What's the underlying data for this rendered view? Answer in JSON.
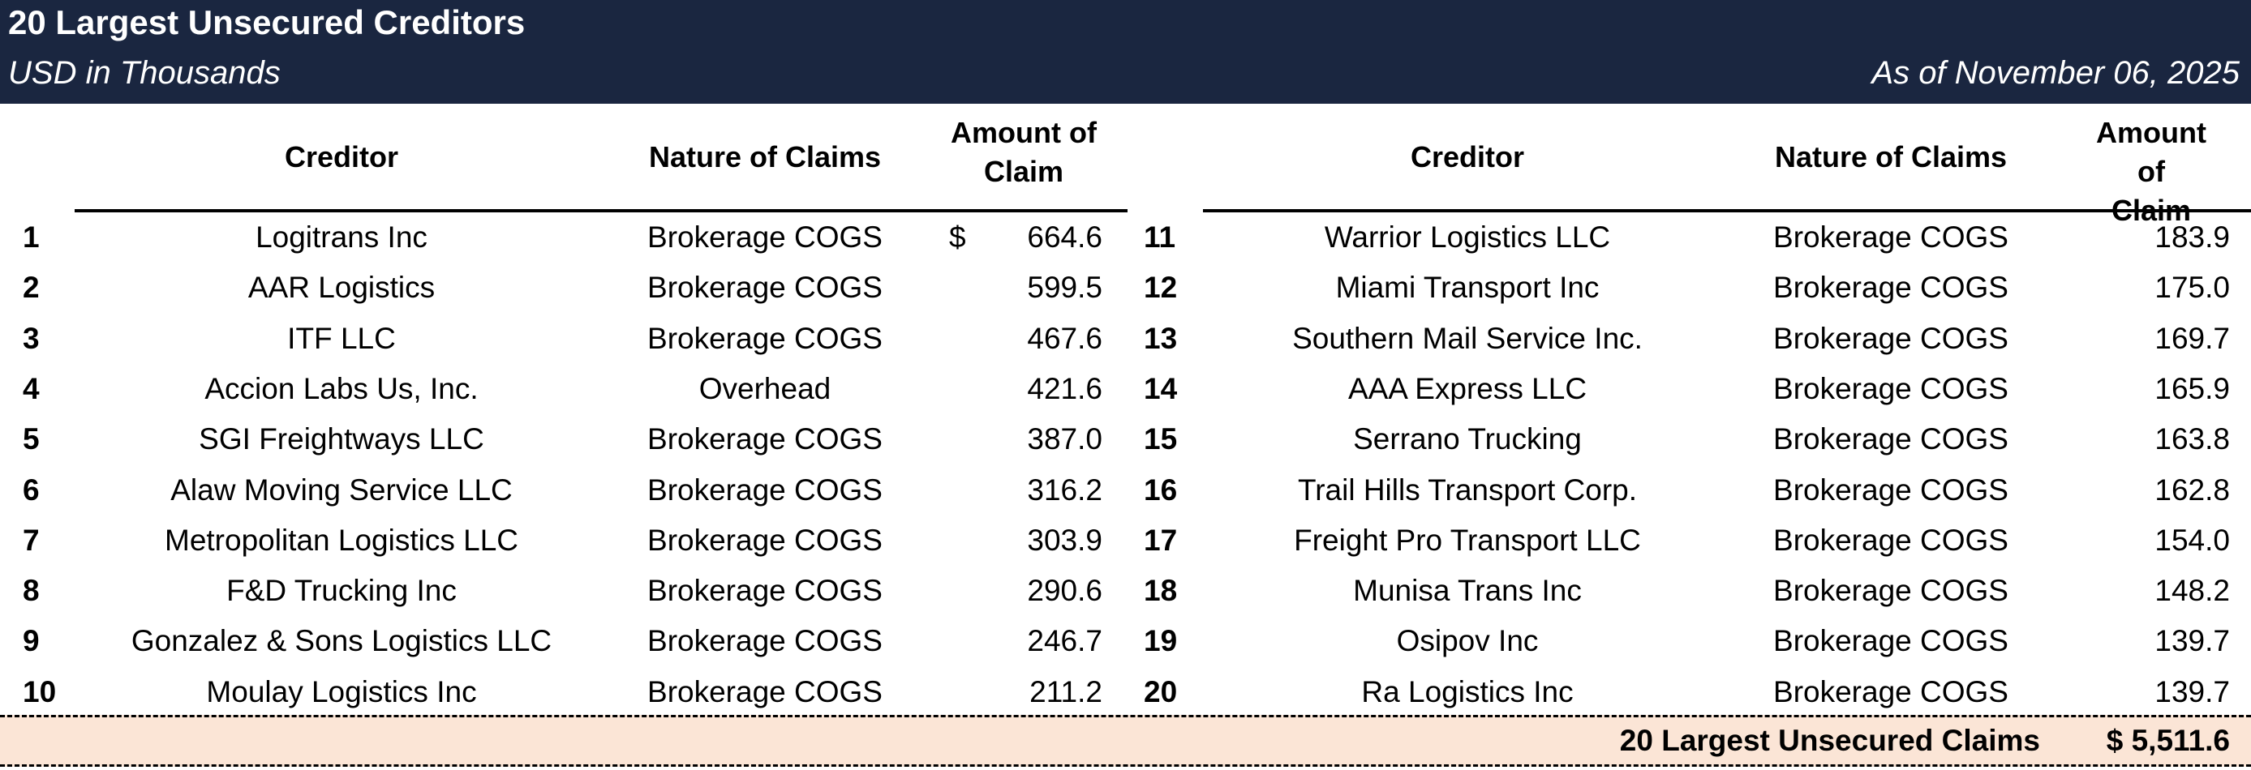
{
  "header": {
    "title": "20 Largest Unsecured Creditors",
    "subtitle": "USD in Thousands",
    "as_of": "As of November 06, 2025"
  },
  "columns": {
    "creditor": "Creditor",
    "nature": "Nature of Claims",
    "amount_line1": "Amount of",
    "amount_line2": "Claim"
  },
  "currency_symbol": "$",
  "creditors": [
    {
      "rank": "1",
      "name": "Logitrans Inc",
      "nature": "Brokerage COGS",
      "amount": "664.6"
    },
    {
      "rank": "2",
      "name": "AAR Logistics",
      "nature": "Brokerage COGS",
      "amount": "599.5"
    },
    {
      "rank": "3",
      "name": "ITF LLC",
      "nature": "Brokerage COGS",
      "amount": "467.6"
    },
    {
      "rank": "4",
      "name": "Accion Labs Us, Inc.",
      "nature": "Overhead",
      "amount": "421.6"
    },
    {
      "rank": "5",
      "name": "SGI Freightways LLC",
      "nature": "Brokerage COGS",
      "amount": "387.0"
    },
    {
      "rank": "6",
      "name": "Alaw Moving Service LLC",
      "nature": "Brokerage COGS",
      "amount": "316.2"
    },
    {
      "rank": "7",
      "name": "Metropolitan Logistics LLC",
      "nature": "Brokerage COGS",
      "amount": "303.9"
    },
    {
      "rank": "8",
      "name": "F&D Trucking Inc",
      "nature": "Brokerage COGS",
      "amount": "290.6"
    },
    {
      "rank": "9",
      "name": "Gonzalez & Sons Logistics LLC",
      "nature": "Brokerage COGS",
      "amount": "246.7"
    },
    {
      "rank": "10",
      "name": "Moulay Logistics Inc",
      "nature": "Brokerage COGS",
      "amount": "211.2"
    },
    {
      "rank": "11",
      "name": "Warrior Logistics LLC",
      "nature": "Brokerage COGS",
      "amount": "183.9"
    },
    {
      "rank": "12",
      "name": "Miami Transport Inc",
      "nature": "Brokerage COGS",
      "amount": "175.0"
    },
    {
      "rank": "13",
      "name": "Southern Mail Service Inc.",
      "nature": "Brokerage COGS",
      "amount": "169.7"
    },
    {
      "rank": "14",
      "name": "AAA Express LLC",
      "nature": "Brokerage COGS",
      "amount": "165.9"
    },
    {
      "rank": "15",
      "name": "Serrano Trucking",
      "nature": "Brokerage COGS",
      "amount": "163.8"
    },
    {
      "rank": "16",
      "name": "Trail Hills Transport Corp.",
      "nature": "Brokerage COGS",
      "amount": "162.8"
    },
    {
      "rank": "17",
      "name": "Freight Pro Transport LLC",
      "nature": "Brokerage COGS",
      "amount": "154.0"
    },
    {
      "rank": "18",
      "name": "Munisa Trans Inc",
      "nature": "Brokerage COGS",
      "amount": "148.2"
    },
    {
      "rank": "19",
      "name": "Osipov Inc",
      "nature": "Brokerage COGS",
      "amount": "139.7"
    },
    {
      "rank": "20",
      "name": "Ra Logistics Inc",
      "nature": "Brokerage COGS",
      "amount": "139.7"
    }
  ],
  "total": {
    "label": "20 Largest Unsecured Claims",
    "value": "$ 5,511.6"
  },
  "colors": {
    "header_bg": "#1a2640",
    "total_bg": "#fbe5d6"
  }
}
